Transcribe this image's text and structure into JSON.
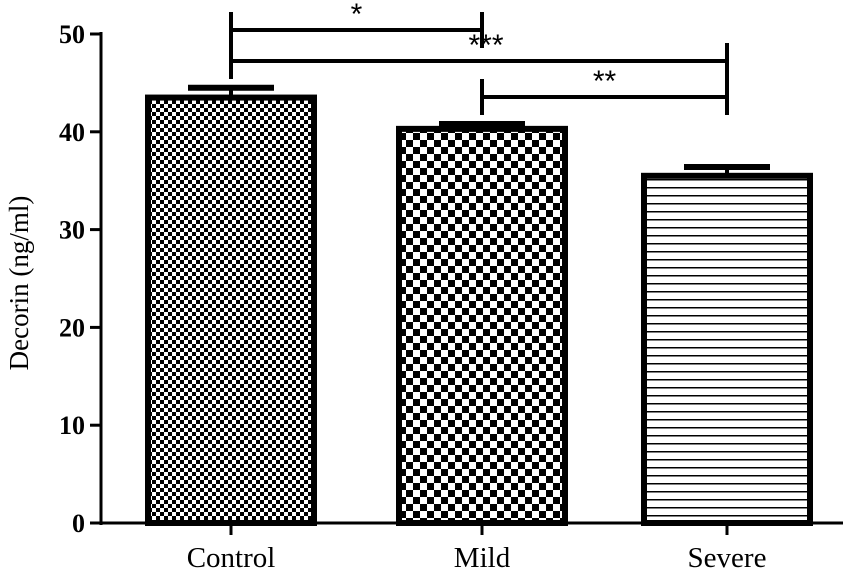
{
  "chart_data": {
    "type": "bar",
    "title": "",
    "xlabel": "",
    "ylabel": "Decorin (ng/ml)",
    "categories": [
      "Control",
      "Mild",
      "Severe"
    ],
    "values": [
      43.5,
      40.3,
      35.5
    ],
    "errors": [
      1.0,
      0.5,
      0.9
    ],
    "patterns": [
      "fine-checker",
      "coarse-checker",
      "horizontal-lines"
    ],
    "ylim": [
      0,
      50
    ],
    "yticks": [
      0,
      10,
      20,
      30,
      40,
      50
    ],
    "grid": false,
    "legend": "none",
    "significance": [
      {
        "from": "Control",
        "to": "Mild",
        "label": "*",
        "y": 47.2
      },
      {
        "from": "Control",
        "to": "Severe",
        "label": "***",
        "y": 47.2
      },
      {
        "from": "Mild",
        "to": "Severe",
        "label": "**",
        "y": 44.0
      }
    ]
  }
}
